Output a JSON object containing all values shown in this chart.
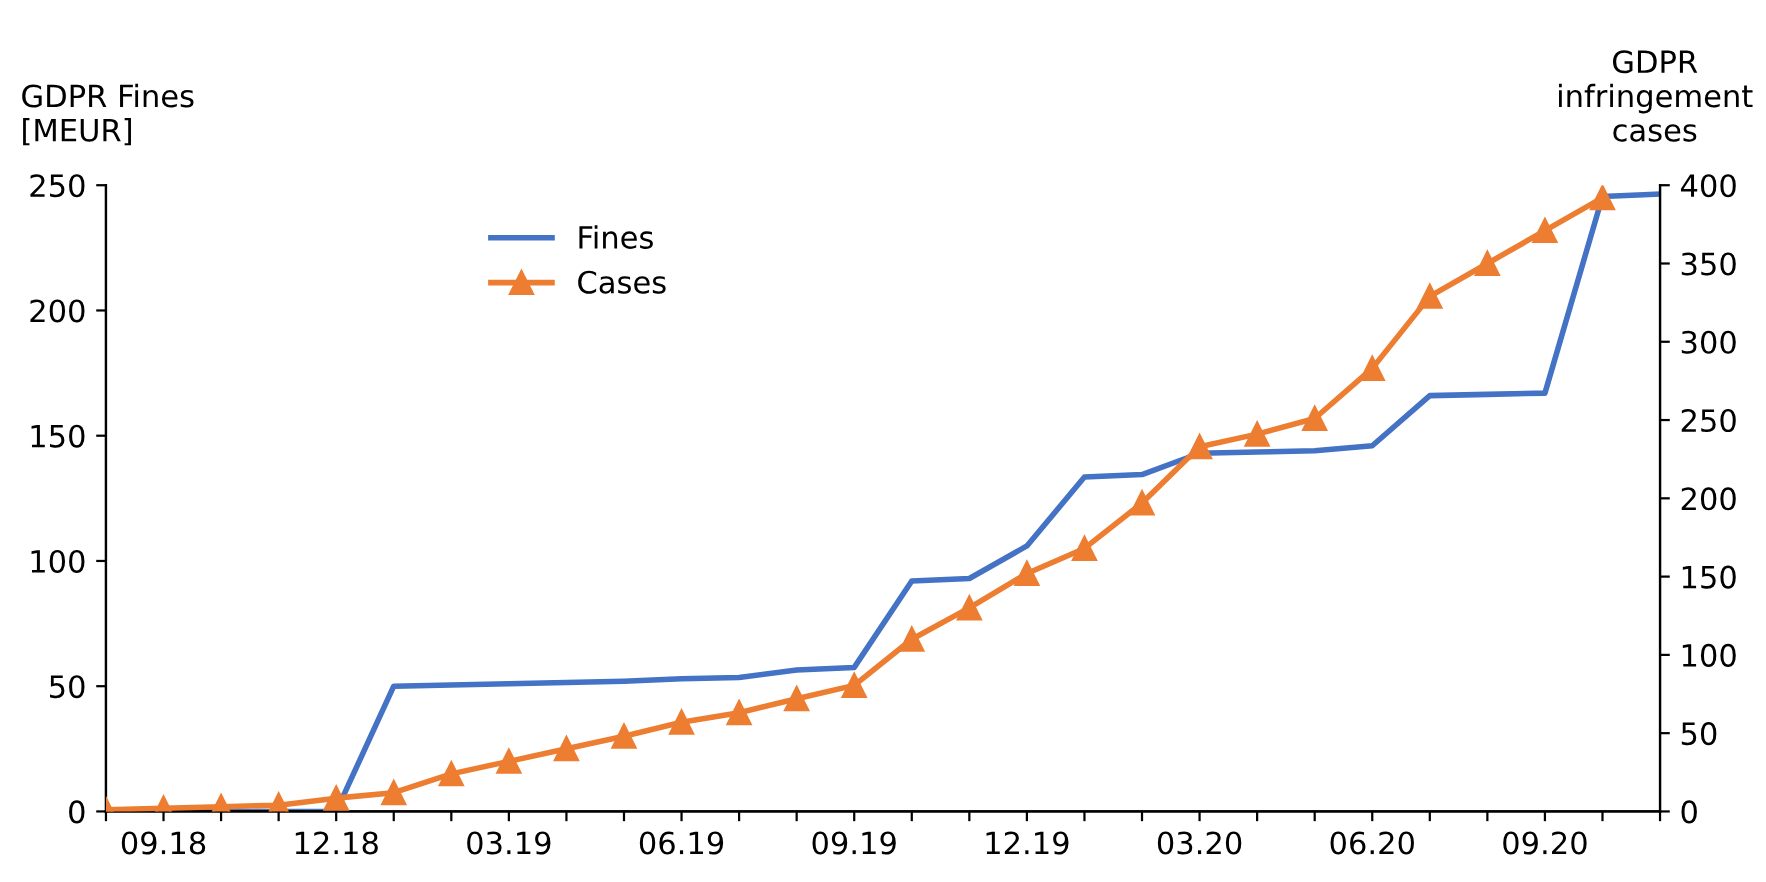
{
  "chart_data": {
    "type": "line",
    "ylabel": "GDPR Fines\n[MEUR]",
    "y2label": "GDPR\ninfringement\ncases",
    "categories": [
      null,
      "09.18",
      null,
      null,
      "12.18",
      null,
      null,
      "03.19",
      null,
      null,
      "06.19",
      null,
      null,
      "09.19",
      null,
      null,
      "12.19",
      null,
      null,
      "03.20",
      null,
      null,
      "06.20",
      null,
      null,
      "09.20",
      null,
      null
    ],
    "series": [
      {
        "name": "Fines",
        "color": "#4472c4",
        "marker": "none",
        "values": [
          0,
          0,
          0,
          0,
          0,
          50,
          50.5,
          51,
          51.5,
          52,
          53,
          53.5,
          56.5,
          57.5,
          92,
          93,
          106,
          133.5,
          134.5,
          143,
          143.5,
          144,
          146,
          166,
          166.5,
          167,
          245.5,
          246.5
        ]
      },
      {
        "name": "Cases",
        "color": "#ed7d31",
        "marker": "triangle",
        "axis": "y2",
        "values": [
          1,
          2,
          3,
          4,
          8.5,
          12,
          24,
          32,
          40,
          48,
          57,
          63,
          72,
          80.5,
          110,
          130,
          152,
          168,
          197,
          233,
          241,
          251,
          283,
          329,
          350,
          371,
          392,
          null
        ]
      }
    ],
    "ylim": [
      0,
      250
    ],
    "yticks": [
      0,
      50,
      100,
      150,
      200,
      250
    ],
    "y2lim": [
      0,
      400
    ],
    "y2ticks": [
      0,
      50,
      100,
      150,
      200,
      250,
      300,
      350,
      400
    ],
    "grid": false,
    "legend": "top left",
    "line_style": "solid"
  }
}
